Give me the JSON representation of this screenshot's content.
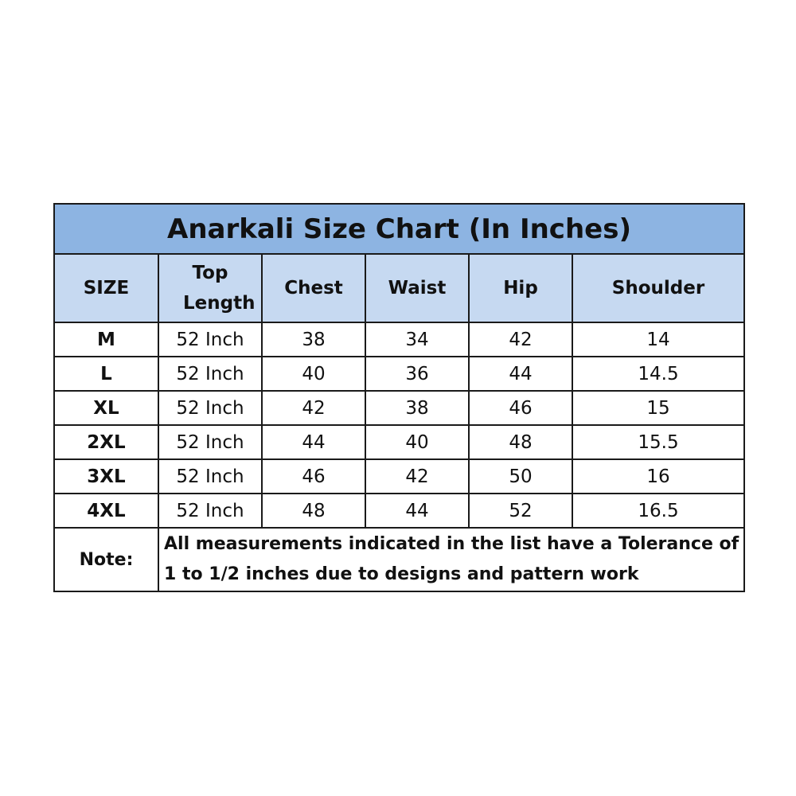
{
  "title": "Anarkali Size Chart (In Inches)",
  "headers": [
    "SIZE",
    "Top Length",
    "Chest",
    "Waist",
    "Hip",
    "Shoulder"
  ],
  "rows": [
    [
      "M",
      "52 Inch",
      "38",
      "34",
      "42",
      "14"
    ],
    [
      "L",
      "52 Inch",
      "40",
      "36",
      "44",
      "14.5"
    ],
    [
      "XL",
      "52 Inch",
      "42",
      "38",
      "46",
      "15"
    ],
    [
      "2XL",
      "52 Inch",
      "44",
      "40",
      "48",
      "15.5"
    ],
    [
      "3XL",
      "52 Inch",
      "46",
      "42",
      "50",
      "16"
    ],
    [
      "4XL",
      "52 Inch",
      "48",
      "44",
      "52",
      "16.5"
    ]
  ],
  "note": {
    "label": "Note:",
    "text": "All measurements indicated in the list have a Tolerance of 1 to 1/2 inches due to designs and pattern work"
  },
  "colors": {
    "title_bg": "#8db4e2",
    "header_bg": "#c6d9f1",
    "border": "#1a1a1a"
  }
}
